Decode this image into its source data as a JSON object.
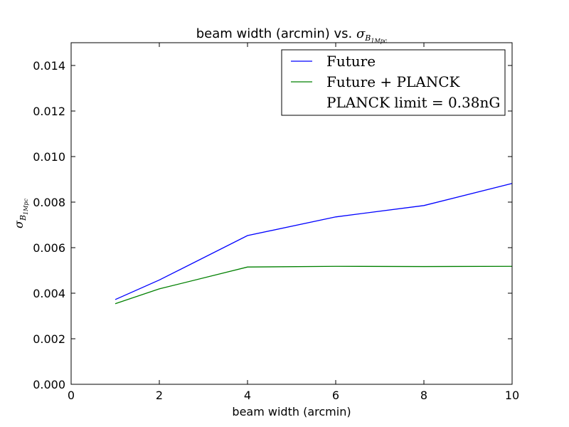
{
  "chart_data": {
    "type": "line",
    "title": {
      "prefix": "beam width (arcmin) vs. ",
      "symbol": "σ",
      "sub": "B",
      "subsub": "1Mpc"
    },
    "xlabel": "beam width (arcmin)",
    "ylabel": {
      "symbol": "σ",
      "sub": "B",
      "subsub": "1Mpc"
    },
    "xlim": [
      0,
      10
    ],
    "ylim": [
      0,
      0.015
    ],
    "xticks": [
      0,
      2,
      4,
      6,
      8,
      10
    ],
    "xtick_labels": [
      "0",
      "2",
      "4",
      "6",
      "8",
      "10"
    ],
    "yticks": [
      0,
      0.002,
      0.004,
      0.006,
      0.008,
      0.01,
      0.012,
      0.014
    ],
    "ytick_labels": [
      "0.000",
      "0.002",
      "0.004",
      "0.006",
      "0.008",
      "0.010",
      "0.012",
      "0.014"
    ],
    "grid": false,
    "legend_position": "top-right",
    "series": [
      {
        "name": "Future",
        "color": "#0000ff",
        "x": [
          1,
          2,
          4,
          6,
          8,
          10
        ],
        "y": [
          0.00372,
          0.00458,
          0.00653,
          0.00735,
          0.00785,
          0.00882
        ]
      },
      {
        "name": "Future + PLANCK",
        "color": "#008000",
        "x": [
          1,
          2,
          4,
          6,
          8,
          10
        ],
        "y": [
          0.00354,
          0.00419,
          0.00515,
          0.00518,
          0.00517,
          0.00518
        ]
      }
    ],
    "legend_extra": "PLANCK limit = 0.38nG"
  }
}
